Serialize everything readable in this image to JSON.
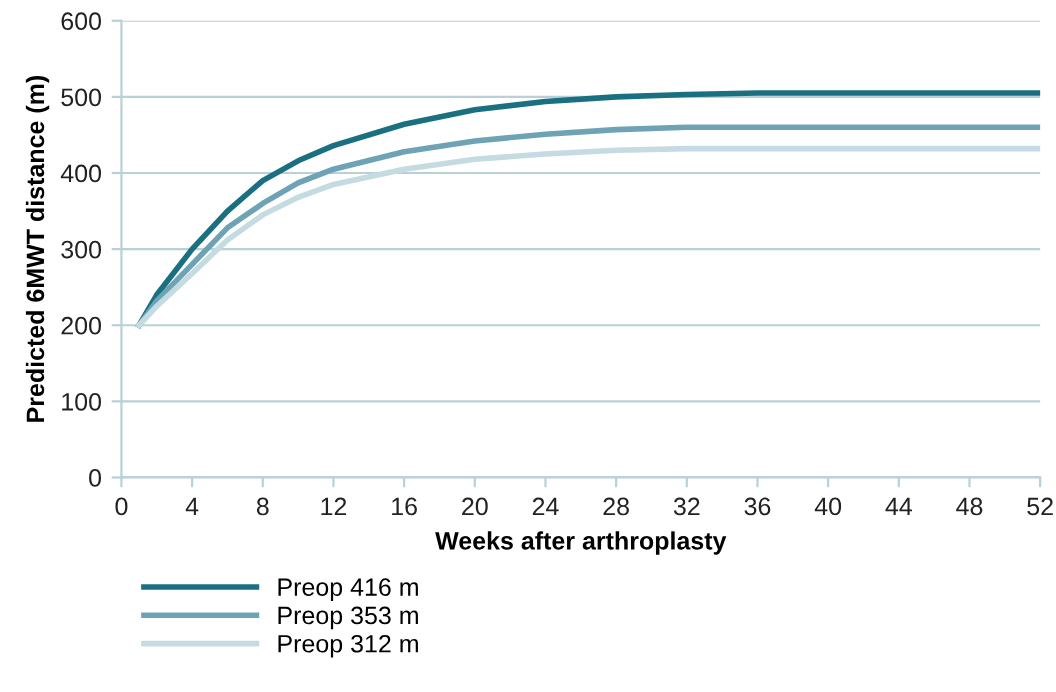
{
  "chart_data": {
    "type": "line",
    "xlabel": "Weeks after arthroplasty",
    "ylabel": "Predicted 6MWT distance (m)",
    "x": [
      1,
      2,
      4,
      6,
      8,
      10,
      12,
      16,
      20,
      24,
      28,
      32,
      36,
      52
    ],
    "series": [
      {
        "name": "Preop 416 m",
        "color": "#1a6f80",
        "values": [
          200,
          240,
          300,
          350,
          390,
          416,
          436,
          464,
          483,
          494,
          500,
          503,
          505,
          505
        ]
      },
      {
        "name": "Preop 353 m",
        "color": "#6da3b5",
        "values": [
          200,
          232,
          280,
          328,
          360,
          387,
          405,
          428,
          442,
          451,
          457,
          460,
          460,
          460
        ]
      },
      {
        "name": "Preop 312 m",
        "color": "#c5dbe2",
        "values": [
          200,
          225,
          268,
          312,
          345,
          368,
          385,
          405,
          418,
          425,
          430,
          432,
          432,
          432
        ]
      }
    ],
    "xlim": [
      0,
      52
    ],
    "xticks": [
      0,
      4,
      8,
      12,
      16,
      20,
      24,
      28,
      32,
      36,
      40,
      44,
      48,
      52
    ],
    "ylim": [
      0,
      600
    ],
    "yticks": [
      0,
      100,
      200,
      300,
      400,
      500,
      600
    ],
    "grid": "y",
    "legend": "bottom left",
    "marker": "none",
    "line_style": "solid"
  }
}
